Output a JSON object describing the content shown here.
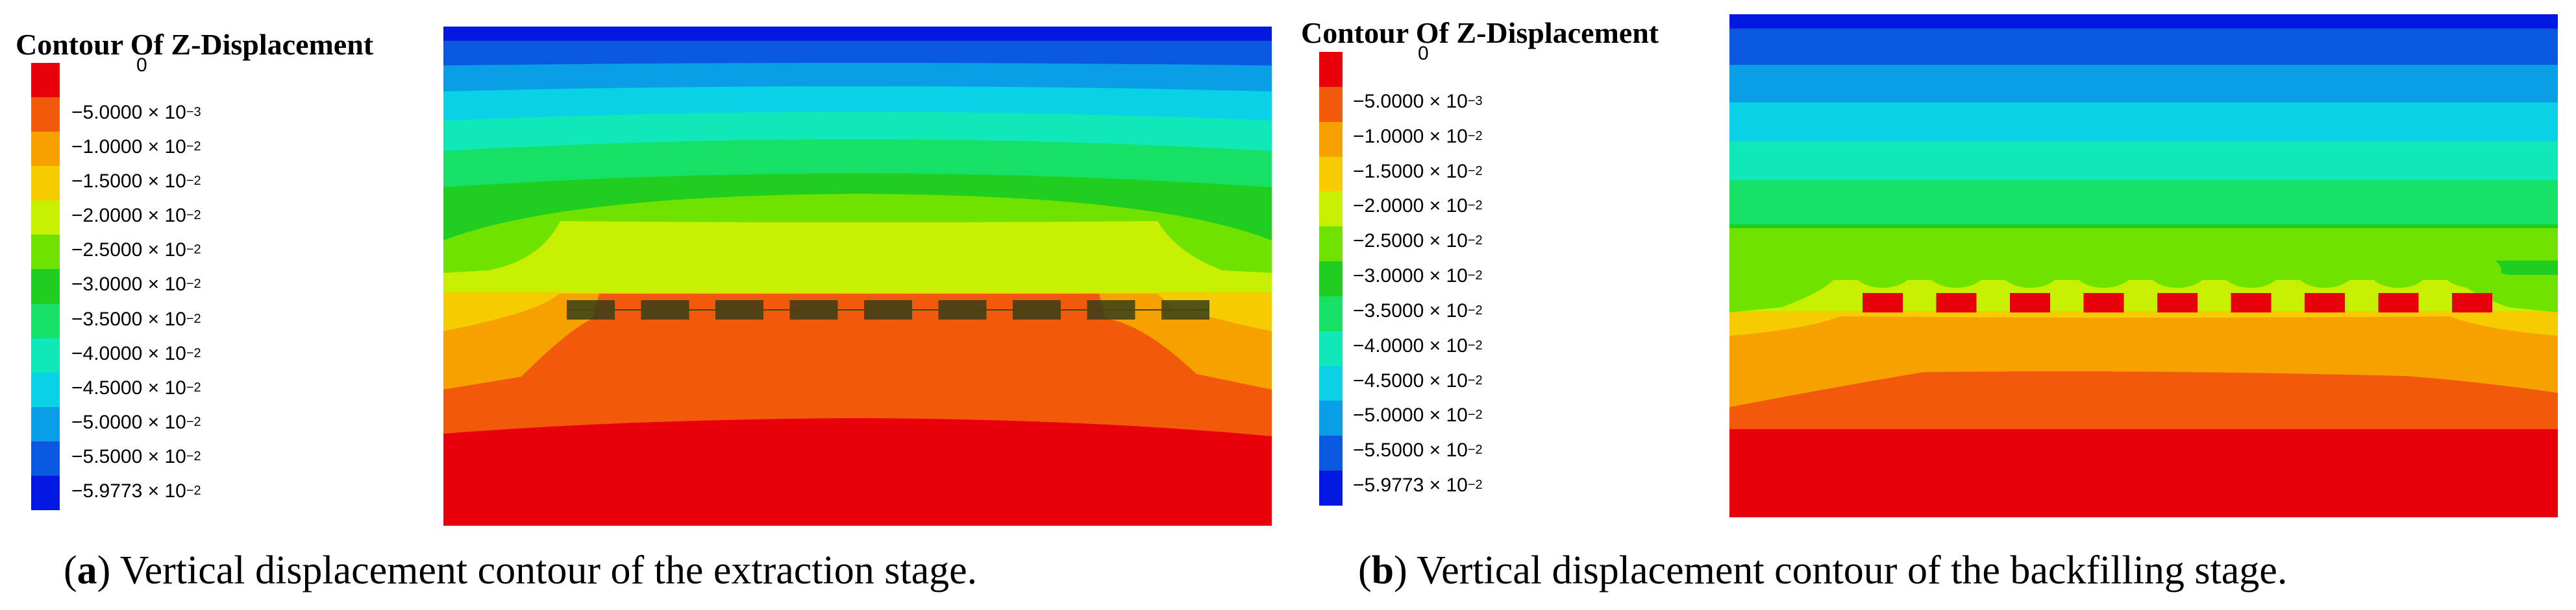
{
  "panels": [
    {
      "id": "a",
      "legend_title": "Contour Of Z-Displacement",
      "legend_entries": [
        {
          "mantissa": "0",
          "exponent": "",
          "color": "#e8000b"
        },
        {
          "mantissa": "−5.0000 × 10",
          "exponent": "−3",
          "color": "#f05a0a"
        },
        {
          "mantissa": "−1.0000 × 10",
          "exponent": "−2",
          "color": "#f7a100"
        },
        {
          "mantissa": "−1.5000 × 10",
          "exponent": "−2",
          "color": "#f6cc00"
        },
        {
          "mantissa": "−2.0000 × 10",
          "exponent": "−2",
          "color": "#c7ef00"
        },
        {
          "mantissa": "−2.5000 × 10",
          "exponent": "−2",
          "color": "#6fe200"
        },
        {
          "mantissa": "−3.0000 × 10",
          "exponent": "−2",
          "color": "#1fce1f"
        },
        {
          "mantissa": "−3.5000 × 10",
          "exponent": "−2",
          "color": "#16e065"
        },
        {
          "mantissa": "−4.0000 × 10",
          "exponent": "−2",
          "color": "#10e8b8"
        },
        {
          "mantissa": "−4.5000 × 10",
          "exponent": "−2",
          "color": "#0ad1e6"
        },
        {
          "mantissa": "−5.0000 × 10",
          "exponent": "−2",
          "color": "#0a9ee6"
        },
        {
          "mantissa": "−5.5000 × 10",
          "exponent": "−2",
          "color": "#0a58e0"
        },
        {
          "mantissa": "−5.9773 × 10",
          "exponent": "−2",
          "color": "#0018e0"
        }
      ],
      "caption_letter": "a",
      "caption_text": " Vertical displacement contour of the extraction stage.",
      "goaf_count": 9
    },
    {
      "id": "b",
      "legend_title": "Contour Of Z-Displacement",
      "legend_entries": [
        {
          "mantissa": "0",
          "exponent": "",
          "color": "#e8000b"
        },
        {
          "mantissa": "−5.0000 × 10",
          "exponent": "−3",
          "color": "#f05a0a"
        },
        {
          "mantissa": "−1.0000 × 10",
          "exponent": "−2",
          "color": "#f7a100"
        },
        {
          "mantissa": "−1.5000 × 10",
          "exponent": "−2",
          "color": "#f6cc00"
        },
        {
          "mantissa": "−2.0000 × 10",
          "exponent": "−2",
          "color": "#c7ef00"
        },
        {
          "mantissa": "−2.5000 × 10",
          "exponent": "−2",
          "color": "#6fe200"
        },
        {
          "mantissa": "−3.0000 × 10",
          "exponent": "−2",
          "color": "#1fce1f"
        },
        {
          "mantissa": "−3.5000 × 10",
          "exponent": "−2",
          "color": "#16e065"
        },
        {
          "mantissa": "−4.0000 × 10",
          "exponent": "−2",
          "color": "#10e8b8"
        },
        {
          "mantissa": "−4.5000 × 10",
          "exponent": "−2",
          "color": "#0ad1e6"
        },
        {
          "mantissa": "−5.0000 × 10",
          "exponent": "−2",
          "color": "#0a9ee6"
        },
        {
          "mantissa": "−5.5000 × 10",
          "exponent": "−2",
          "color": "#0a58e0"
        },
        {
          "mantissa": "−5.9773 × 10",
          "exponent": "−2",
          "color": "#0018e0"
        }
      ],
      "caption_letter": "b",
      "caption_text": " Vertical displacement contour of the backfilling stage.",
      "goaf_count": 9
    }
  ]
}
